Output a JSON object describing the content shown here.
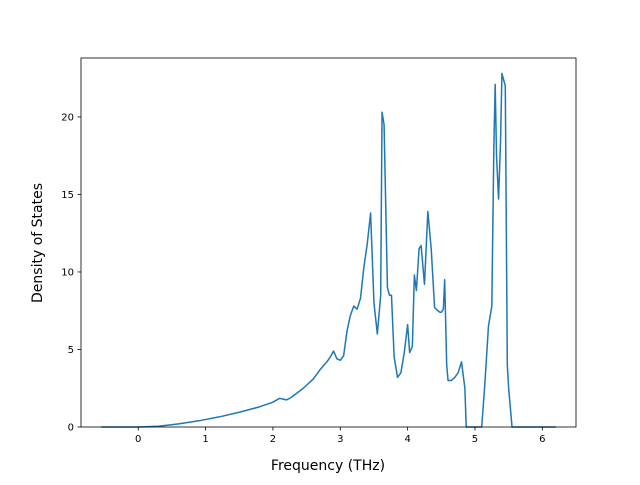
{
  "chart_data": {
    "type": "line",
    "title": "",
    "xlabel": "Frequency (THz)",
    "ylabel": "Density of States",
    "xlim": [
      -0.85,
      6.5
    ],
    "ylim": [
      0,
      23.8
    ],
    "xticks": [
      0,
      1,
      2,
      3,
      4,
      5,
      6
    ],
    "yticks": [
      0,
      5,
      10,
      15,
      20
    ],
    "xtick_labels": [
      "0",
      "1",
      "2",
      "3",
      "4",
      "5",
      "6"
    ],
    "ytick_labels": [
      "0",
      "5",
      "10",
      "15",
      "20"
    ],
    "grid": false,
    "legend": null,
    "series": [
      {
        "color": "#1f77b4",
        "x": [
          -0.55,
          0.0,
          0.3,
          0.6,
          0.9,
          1.2,
          1.5,
          1.8,
          2.0,
          2.1,
          2.15,
          2.2,
          2.25,
          2.3,
          2.45,
          2.6,
          2.7,
          2.8,
          2.85,
          2.9,
          2.95,
          3.0,
          3.05,
          3.1,
          3.15,
          3.2,
          3.25,
          3.3,
          3.35,
          3.4,
          3.45,
          3.5,
          3.55,
          3.6,
          3.62,
          3.65,
          3.7,
          3.73,
          3.76,
          3.8,
          3.85,
          3.9,
          3.95,
          4.0,
          4.03,
          4.07,
          4.1,
          4.13,
          4.17,
          4.2,
          4.25,
          4.3,
          4.35,
          4.4,
          4.45,
          4.48,
          4.5,
          4.53,
          4.55,
          4.58,
          4.6,
          4.65,
          4.7,
          4.75,
          4.8,
          4.85,
          4.87,
          4.9,
          4.95,
          5.0,
          5.05,
          5.1,
          5.15,
          5.2,
          5.25,
          5.28,
          5.3,
          5.32,
          5.35,
          5.38,
          5.4,
          5.45,
          5.48,
          5.5,
          5.55,
          5.6,
          5.63,
          5.65,
          5.7,
          5.8,
          6.0,
          6.2
        ],
        "y": [
          0.0,
          0.0,
          0.05,
          0.2,
          0.4,
          0.65,
          0.95,
          1.3,
          1.6,
          1.85,
          1.8,
          1.75,
          1.85,
          2.0,
          2.5,
          3.1,
          3.7,
          4.2,
          4.5,
          4.9,
          4.4,
          4.3,
          4.6,
          6.2,
          7.2,
          7.8,
          7.6,
          8.3,
          10.3,
          11.8,
          13.8,
          8.0,
          6.0,
          8.5,
          20.3,
          19.5,
          9.0,
          8.5,
          8.5,
          4.5,
          3.2,
          3.5,
          4.8,
          6.6,
          4.8,
          5.2,
          9.8,
          8.8,
          11.5,
          11.7,
          9.2,
          13.9,
          11.5,
          7.7,
          7.5,
          7.4,
          7.4,
          7.6,
          9.5,
          4.0,
          3.0,
          3.0,
          3.2,
          3.5,
          4.2,
          2.5,
          0.0,
          0.0,
          0.0,
          0.0,
          0.0,
          0.0,
          3.0,
          6.5,
          7.8,
          18.0,
          22.1,
          17.5,
          14.7,
          18.5,
          22.8,
          22.0,
          4.0,
          2.5,
          0.0,
          0.0,
          0.0,
          0.0,
          0.0,
          0.0,
          0.0,
          0.0
        ]
      }
    ]
  }
}
